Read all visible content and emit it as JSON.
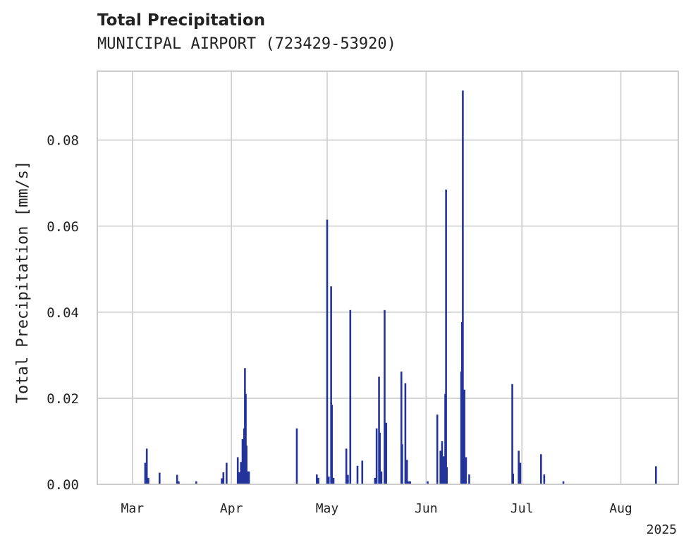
{
  "chart_data": {
    "type": "bar",
    "title": "Total Precipitation",
    "subtitle": "MUNICIPAL AIRPORT (723429-53920)",
    "xlabel": "",
    "ylabel": "Total Precipitation [mm/s]",
    "x_tick_labels": [
      "Mar",
      "Apr",
      "May",
      "Jun",
      "Jul",
      "Aug"
    ],
    "x_tick_dates": [
      "2025-03-01",
      "2025-04-01",
      "2025-05-01",
      "2025-06-01",
      "2025-07-01",
      "2025-08-01"
    ],
    "x_offset_label": "2025",
    "xlim": [
      "2025-02-18",
      "2025-08-19"
    ],
    "ylim": [
      0,
      0.096
    ],
    "y_ticks": [
      0.0,
      0.02,
      0.04,
      0.06,
      0.08
    ],
    "y_tick_labels": [
      "0.00",
      "0.02",
      "0.04",
      "0.06",
      "0.08"
    ],
    "grid": true,
    "bar_color": "#23349a",
    "series": [
      {
        "x": [
          "2025-03-05T00:00",
          "2025-03-05T12:00",
          "2025-03-06T00:00",
          "2025-03-09T12:00",
          "2025-03-15T00:00",
          "2025-03-15T12:00",
          "2025-03-21T00:00",
          "2025-03-29T00:00",
          "2025-03-29T12:00",
          "2025-03-30T12:00",
          "2025-04-03T00:00",
          "2025-04-03T12:00",
          "2025-04-04T00:00",
          "2025-04-04T12:00",
          "2025-04-05T00:00",
          "2025-04-05T06:00",
          "2025-04-05T12:00",
          "2025-04-05T18:00",
          "2025-04-06T00:00",
          "2025-04-06T12:00",
          "2025-04-21T12:00",
          "2025-04-27T18:00",
          "2025-04-28T06:00",
          "2025-05-01T00:00",
          "2025-05-01T12:00",
          "2025-05-02T06:00",
          "2025-05-02T12:00",
          "2025-05-03T00:00",
          "2025-05-07T00:00",
          "2025-05-07T12:00",
          "2025-05-08T06:00",
          "2025-05-10T12:00",
          "2025-05-12T00:00",
          "2025-05-16T00:00",
          "2025-05-16T12:00",
          "2025-05-17T06:00",
          "2025-05-17T12:00",
          "2025-05-18T00:00",
          "2025-05-19T00:00",
          "2025-05-19T12:00",
          "2025-05-24T06:00",
          "2025-05-24T12:00",
          "2025-05-25T12:00",
          "2025-05-26T00:00",
          "2025-05-26T12:00",
          "2025-05-27T00:00",
          "2025-06-01T12:00",
          "2025-06-04T12:00",
          "2025-06-05T12:00",
          "2025-06-06T00:00",
          "2025-06-06T12:00",
          "2025-06-07T00:00",
          "2025-06-07T06:00",
          "2025-06-07T12:00",
          "2025-06-12T00:00",
          "2025-06-12T06:00",
          "2025-06-12T12:00",
          "2025-06-13T00:00",
          "2025-06-13T12:00",
          "2025-06-14T12:00",
          "2025-06-28T00:00",
          "2025-06-28T06:00",
          "2025-06-30T00:00",
          "2025-06-30T12:00",
          "2025-07-07T00:00",
          "2025-07-08T00:00",
          "2025-07-14T00:00",
          "2025-08-12T00:00"
        ],
        "values": [
          0.005,
          0.0083,
          0.0015,
          0.0027,
          0.0022,
          0.0007,
          0.0007,
          0.0014,
          0.0028,
          0.005,
          0.0063,
          0.0028,
          0.0052,
          0.0105,
          0.013,
          0.027,
          0.021,
          0.009,
          0.003,
          0.003,
          0.013,
          0.0023,
          0.0015,
          0.0615,
          0.0018,
          0.046,
          0.0185,
          0.0015,
          0.0083,
          0.0022,
          0.0405,
          0.0043,
          0.0055,
          0.0015,
          0.013,
          0.025,
          0.012,
          0.003,
          0.0405,
          0.0143,
          0.0262,
          0.0093,
          0.0235,
          0.0057,
          0.0007,
          0.0007,
          0.0007,
          0.0162,
          0.0078,
          0.01,
          0.0065,
          0.021,
          0.0685,
          0.004,
          0.0262,
          0.0377,
          0.0915,
          0.022,
          0.0063,
          0.0023,
          0.0233,
          0.0025,
          0.0078,
          0.005,
          0.007,
          0.0023,
          0.0007,
          0.0042
        ]
      }
    ]
  }
}
